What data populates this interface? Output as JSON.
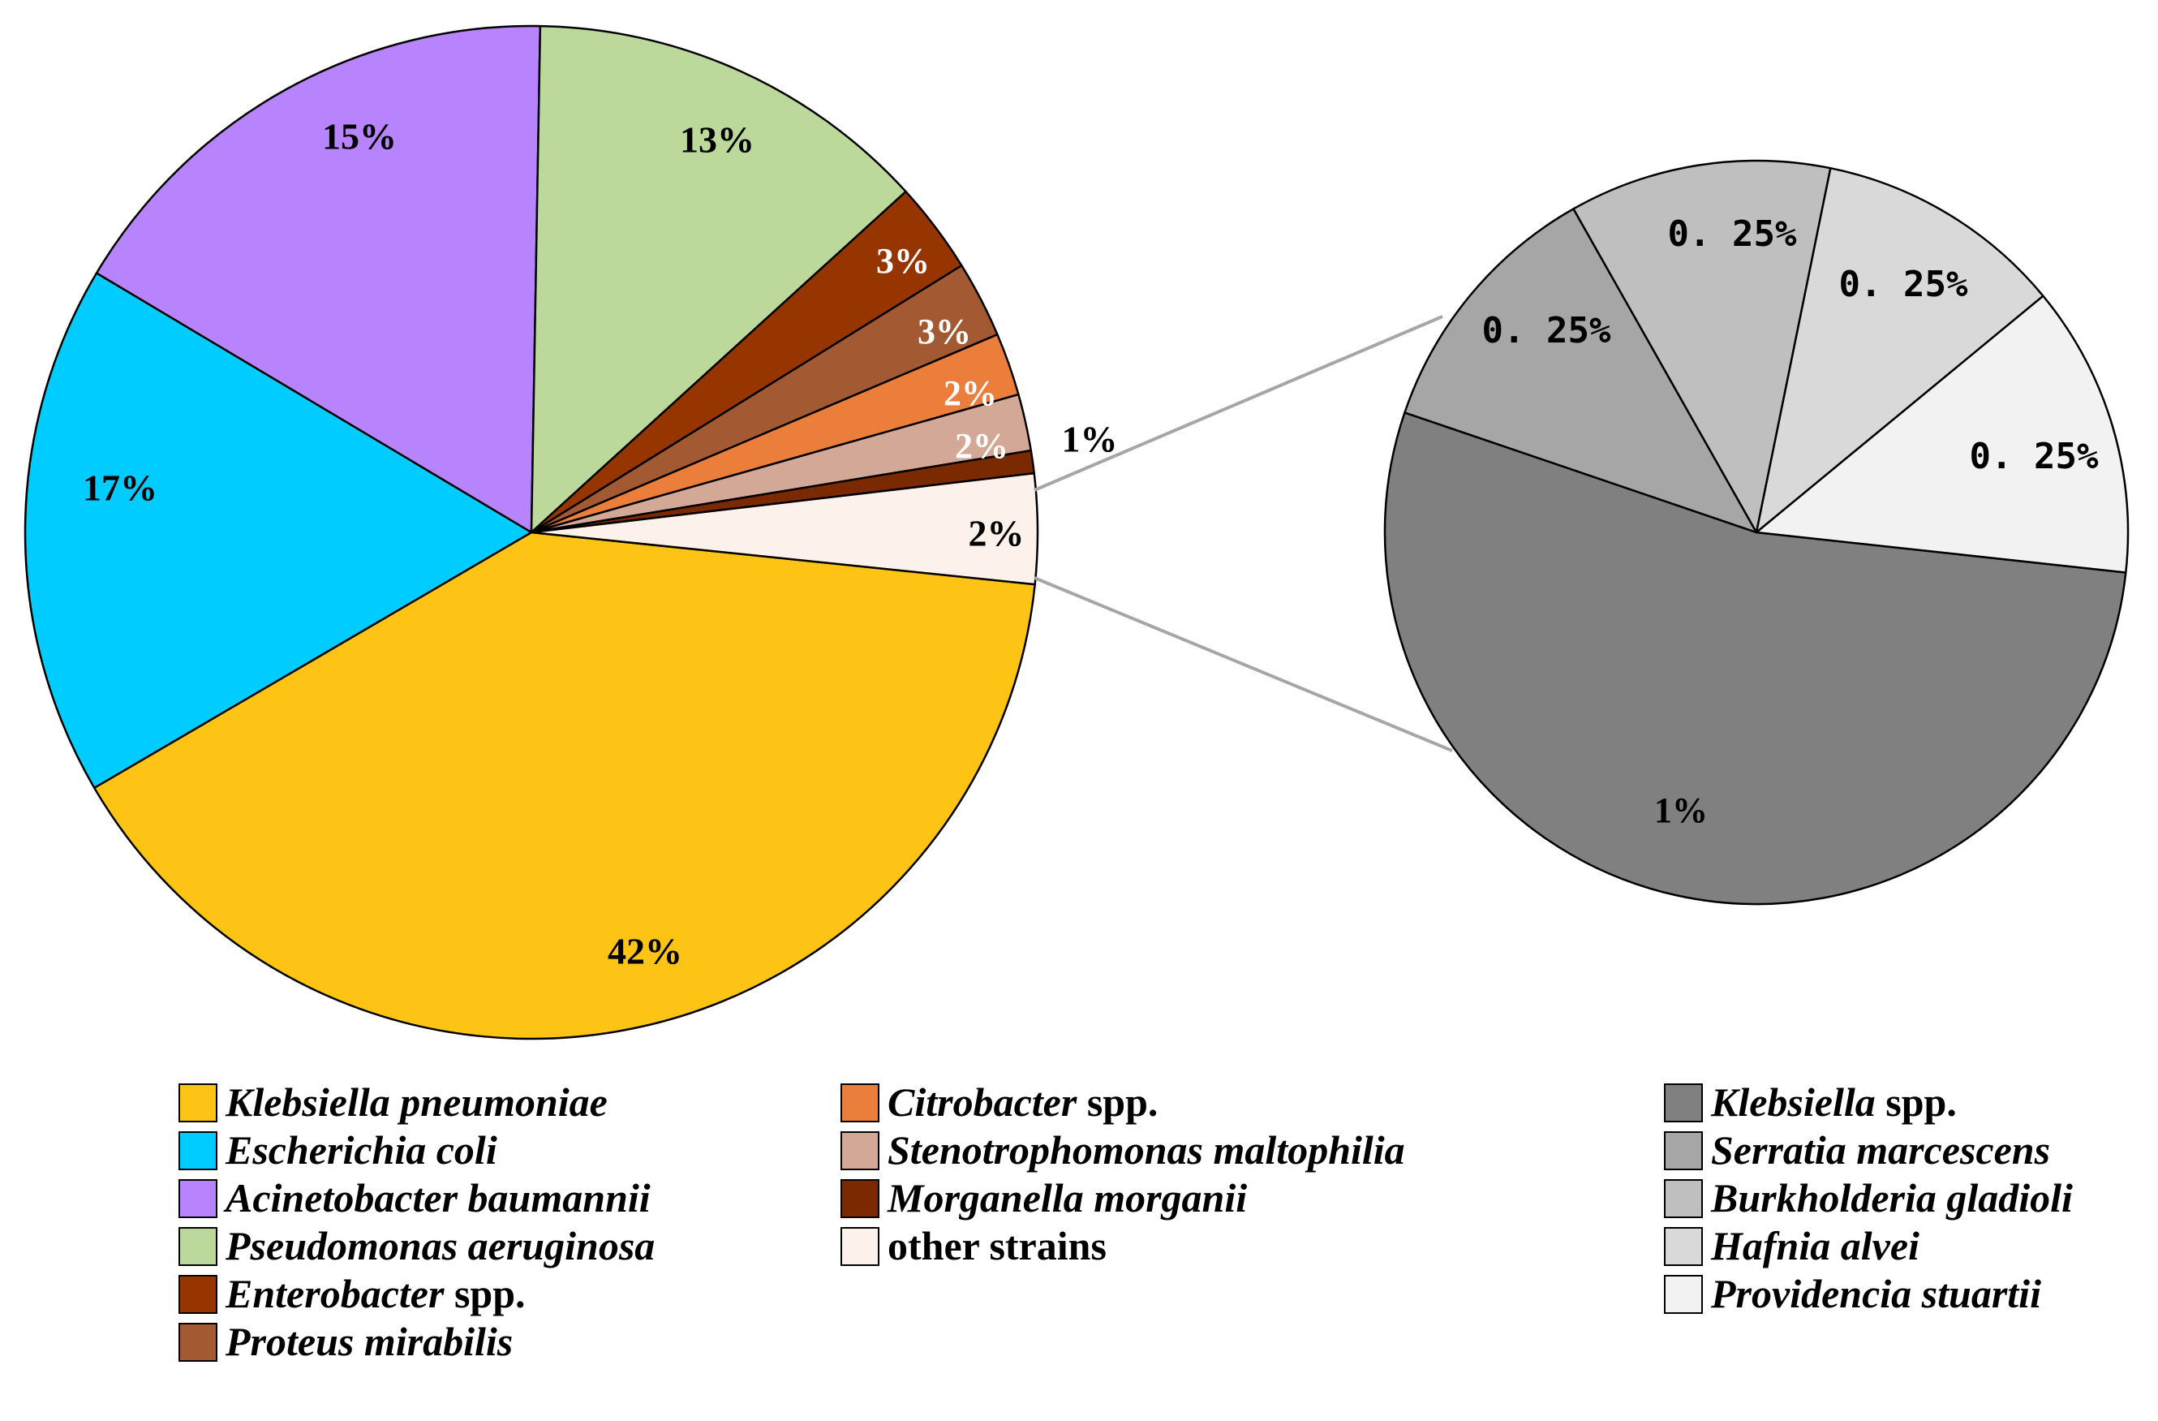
{
  "chart_data": [
    {
      "type": "pie",
      "title": "",
      "unit": "%",
      "slices": [
        {
          "name": "Klebsiella pneumoniae",
          "suffix": "",
          "value": 42,
          "label": "42%",
          "color": "#FDC315",
          "label_color": "#000000"
        },
        {
          "name": "Escherichia coli",
          "suffix": "",
          "value": 17,
          "label": "17%",
          "color": "#00CCFF",
          "label_color": "#000000"
        },
        {
          "name": "Acinetobacter baumannii",
          "suffix": "",
          "value": 15,
          "label": "15%",
          "color": "#B784FD",
          "label_color": "#000000"
        },
        {
          "name": "Pseudomonas aeruginosa",
          "suffix": "",
          "value": 13,
          "label": "13%",
          "color": "#BCD99B",
          "label_color": "#000000"
        },
        {
          "name": "Enterobacter",
          "suffix": " spp.",
          "value": 3,
          "label": "3%",
          "color": "#973501",
          "label_color": "#ffffff"
        },
        {
          "name": "Proteus mirabilis",
          "suffix": "",
          "value": 3,
          "label": "3%",
          "color": "#A35A33",
          "label_color": "#ffffff"
        },
        {
          "name": "Citrobacter",
          "suffix": " spp.",
          "value": 2,
          "label": "2%",
          "color": "#EC7E3C",
          "label_color": "#ffffff"
        },
        {
          "name": "Stenotrophomonas maltophilia",
          "suffix": "",
          "value": 2,
          "label": "2%",
          "color": "#D4A896",
          "label_color": "#ffffff"
        },
        {
          "name": "Morganella morganii",
          "suffix": "",
          "value": 1,
          "label": "1%",
          "color": "#7B2901",
          "label_color": "#000000"
        },
        {
          "name": "other strains",
          "suffix": "",
          "value": 2,
          "label": "2%",
          "color": "#FDF1EC",
          "label_color": "#000000"
        }
      ]
    },
    {
      "type": "pie",
      "title": "",
      "unit": "%",
      "breakdown_of": "other strains",
      "slices": [
        {
          "name": "Klebsiella",
          "suffix": " spp.",
          "value": 1,
          "label": "1%",
          "color": "#808080",
          "label_color": "#000000"
        },
        {
          "name": "Serratia marcescens",
          "suffix": "",
          "value": 0.25,
          "label": "0. 25%",
          "color": "#A6A6A6",
          "label_color": "#000000"
        },
        {
          "name": "Burkholderia gladioli",
          "suffix": "",
          "value": 0.25,
          "label": "0. 25%",
          "color": "#BFBFBF",
          "label_color": "#000000"
        },
        {
          "name": "Hafnia alvei",
          "suffix": "",
          "value": 0.25,
          "label": "0. 25%",
          "color": "#D9D9D9",
          "label_color": "#000000"
        },
        {
          "name": "Providencia stuartii",
          "suffix": "",
          "value": 0.25,
          "label": "0. 25%",
          "color": "#F2F2F2",
          "label_color": "#000000"
        }
      ]
    }
  ]
}
